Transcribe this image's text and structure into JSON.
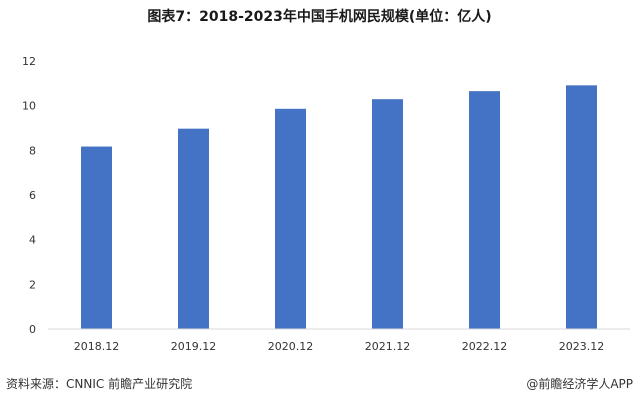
{
  "chart_data": {
    "type": "bar",
    "title": "图表7：2018-2023年中国手机网民规模(单位：亿人)",
    "categories": [
      "2018.12",
      "2019.12",
      "2020.12",
      "2021.12",
      "2022.12",
      "2023.12"
    ],
    "values": [
      8.17,
      8.97,
      9.86,
      10.29,
      10.65,
      10.91
    ],
    "ylim": [
      0,
      12
    ],
    "yticks": [
      "0",
      "2",
      "4",
      "6",
      "8",
      "10",
      "12"
    ],
    "grid": false,
    "legend": "none",
    "bar_color": "#4472C4"
  },
  "footer": {
    "source": "资料来源：CNNIC 前瞻产业研究院",
    "credit": "@前瞻经济学人APP"
  }
}
